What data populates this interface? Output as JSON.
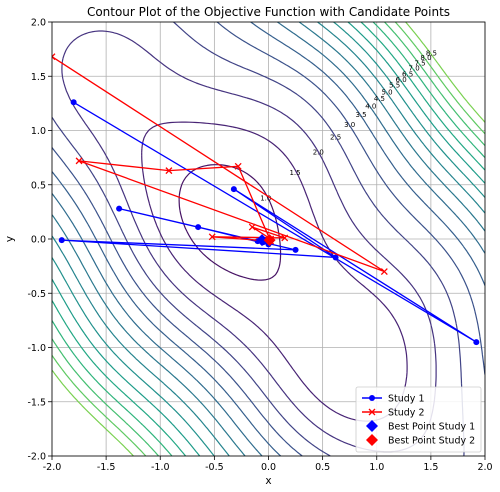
{
  "chart_data": {
    "type": "line",
    "title": "Contour Plot of the Objective Function with Candidate Points",
    "xlabel": "x",
    "ylabel": "y",
    "xlim": [
      -2.0,
      2.0
    ],
    "ylim": [
      -2.0,
      2.0
    ],
    "xticks": [
      "-2.0",
      "-1.5",
      "-1.0",
      "-0.5",
      "0.0",
      "0.5",
      "1.0",
      "1.5",
      "2.0"
    ],
    "yticks": [
      "-2.0",
      "-1.5",
      "-1.0",
      "-0.5",
      "0.0",
      "0.5",
      "1.0",
      "1.5",
      "2.0"
    ],
    "grid": true,
    "legend_position": "bottom-right",
    "contour_labels": [
      "0.5",
      "1.0",
      "1.5",
      "2.0",
      "2.5",
      "3.0",
      "3.5",
      "4.0",
      "4.5",
      "5.0",
      "5.5",
      "6.0",
      "6.5",
      "7.0",
      "7.5",
      "8.0",
      "8.5"
    ],
    "series": [
      {
        "name": "Study 1",
        "marker": "circle",
        "color": "#0000ff",
        "x": [
          -1.8,
          1.92,
          -0.32,
          0.62,
          -1.91,
          0.25,
          -1.38,
          -0.1,
          -0.65,
          0.0,
          -0.05
        ],
        "y": [
          1.26,
          -0.95,
          0.46,
          -0.17,
          -0.01,
          -0.1,
          0.28,
          -0.02,
          0.11,
          -0.05,
          -0.03
        ]
      },
      {
        "name": "Study 2",
        "marker": "x",
        "color": "#ff0000",
        "x": [
          -2.0,
          1.07,
          -1.75,
          -0.92,
          -0.28,
          0.02,
          -0.52,
          0.15,
          -0.15,
          0.02
        ],
        "y": [
          1.68,
          -0.3,
          0.72,
          0.63,
          0.67,
          -0.02,
          0.02,
          0.01,
          0.11,
          0.0
        ]
      },
      {
        "name": "Best Point Study 1",
        "marker": "diamond",
        "color": "#0000ff",
        "x": [
          -0.06
        ],
        "y": [
          -0.01
        ]
      },
      {
        "name": "Best Point Study 2",
        "marker": "diamond",
        "color": "#ff0000",
        "x": [
          0.01
        ],
        "y": [
          -0.01
        ]
      }
    ]
  }
}
